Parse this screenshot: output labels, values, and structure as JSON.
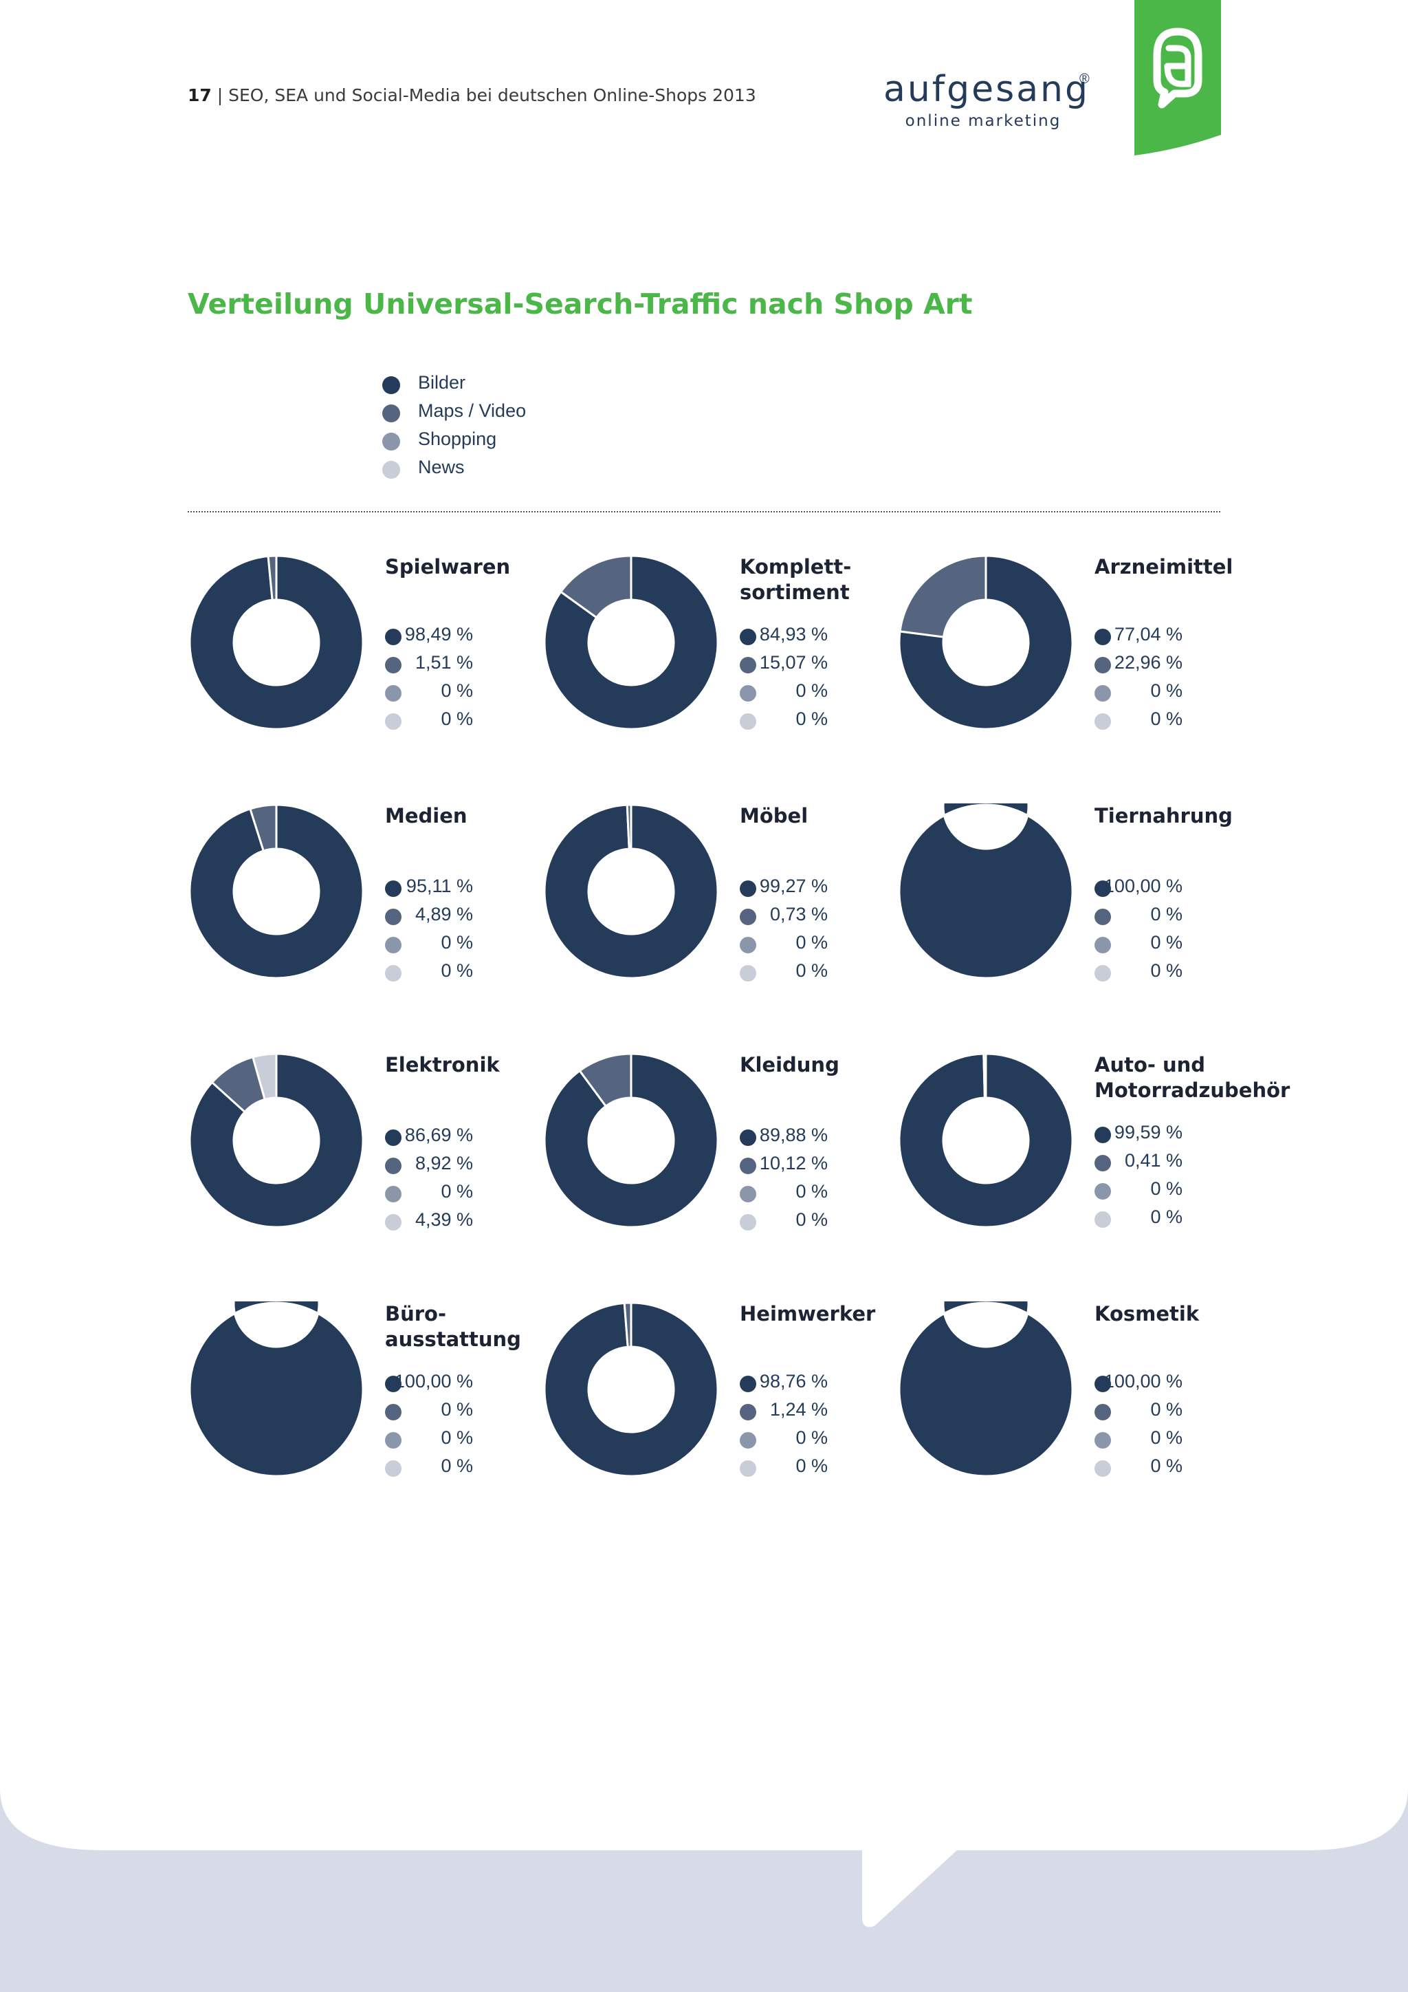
{
  "header": {
    "page_number": "17",
    "separator": "|",
    "document_title": "SEO, SEA und Social-Media bei deutschen Online-Shops 2013"
  },
  "logo": {
    "wordmark": "aufgesang",
    "registered": "®",
    "tagline": "online marketing"
  },
  "colors": {
    "accent_green": "#4bb749",
    "bottom_band": "#d6dbe7",
    "series": [
      "#243b5a",
      "#556580",
      "#8b96aa",
      "#c9cdd8"
    ]
  },
  "chart_data": {
    "type": "pie",
    "title": "Verteilung Universal-Search-Traffic nach Shop Art",
    "legend": [
      "Bilder",
      "Maps / Video",
      "Shopping",
      "News"
    ],
    "legend_placement": "top",
    "panels": [
      {
        "name": "Spielwaren",
        "values": [
          98.49,
          1.51,
          0,
          0
        ],
        "labels": [
          "98,49 %",
          "1,51 %",
          "0 %",
          "0 %"
        ]
      },
      {
        "name": "Komplett-\nsortiment",
        "values": [
          84.93,
          15.07,
          0,
          0
        ],
        "labels": [
          "84,93 %",
          "15,07 %",
          "0 %",
          "0 %"
        ]
      },
      {
        "name": "Arzneimittel",
        "values": [
          77.04,
          22.96,
          0,
          0
        ],
        "labels": [
          "77,04 %",
          "22,96 %",
          "0 %",
          "0 %"
        ]
      },
      {
        "name": "Medien",
        "values": [
          95.11,
          4.89,
          0,
          0
        ],
        "labels": [
          "95,11 %",
          "4,89 %",
          "0 %",
          "0 %"
        ]
      },
      {
        "name": "Möbel",
        "values": [
          99.27,
          0.73,
          0,
          0
        ],
        "labels": [
          "99,27 %",
          "0,73 %",
          "0 %",
          "0 %"
        ]
      },
      {
        "name": "Tiernahrung",
        "values": [
          100,
          0,
          0,
          0
        ],
        "labels": [
          "100,00 %",
          "0 %",
          "0 %",
          "0 %"
        ]
      },
      {
        "name": "Elektronik",
        "values": [
          86.69,
          8.92,
          0,
          4.39
        ],
        "labels": [
          "86,69 %",
          "8,92 %",
          "0 %",
          "4,39 %"
        ]
      },
      {
        "name": "Kleidung",
        "values": [
          89.88,
          10.12,
          0,
          0
        ],
        "labels": [
          "89,88 %",
          "10,12 %",
          "0 %",
          "0 %"
        ]
      },
      {
        "name": "Auto- und\nMotorradzubehör",
        "values": [
          99.59,
          0.41,
          0,
          0
        ],
        "labels": [
          "99,59 %",
          "0,41 %",
          "0 %",
          "0 %"
        ]
      },
      {
        "name": "Büro-\nausstattung",
        "values": [
          100,
          0,
          0,
          0
        ],
        "labels": [
          "100,00 %",
          "0 %",
          "0 %",
          "0 %"
        ]
      },
      {
        "name": "Heimwerker",
        "values": [
          98.76,
          1.24,
          0,
          0
        ],
        "labels": [
          "98,76 %",
          "1,24 %",
          "0 %",
          "0 %"
        ]
      },
      {
        "name": "Kosmetik",
        "values": [
          100,
          0,
          0,
          0
        ],
        "labels": [
          "100,00 %",
          "0 %",
          "0 %",
          "0 %"
        ]
      }
    ]
  }
}
